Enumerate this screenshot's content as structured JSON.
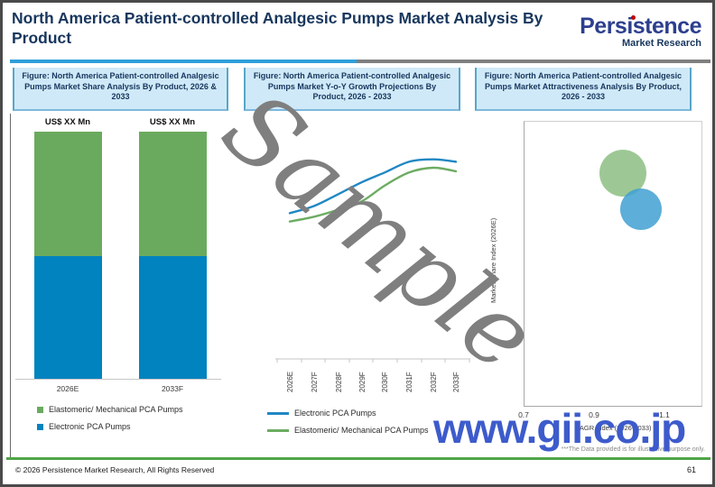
{
  "header": {
    "title": "North America Patient-controlled Analgesic Pumps Market Analysis By Product",
    "logo": {
      "name": "Persistence",
      "tagline": "Market Research",
      "accent_color": "#c00000",
      "brand_color": "#2c3f8e"
    }
  },
  "figures": [
    {
      "title": "Figure: North America Patient-controlled Analgesic Pumps Market Share Analysis By Product, 2026 & 2033"
    },
    {
      "title": "Figure: North America Patient-controlled Analgesic Pumps Market Y-o-Y Growth Projections By Product, 2026 - 2033"
    },
    {
      "title": "Figure: North America Patient-controlled Analgesic Pumps Market Attractiveness Analysis By Product, 2026 - 2033"
    }
  ],
  "chart_data": [
    {
      "type": "bar",
      "subtype": "stacked",
      "title": "North America Patient-controlled Analgesic Pumps Market Share Analysis By Product, 2026 & 2033",
      "categories": [
        "2026E",
        "2033F"
      ],
      "bar_value_labels": [
        "US$ XX Mn",
        "US$ XX Mn"
      ],
      "series": [
        {
          "name": "Electronic PCA Pumps",
          "color": "#0083bf",
          "values": [
            "XX",
            "XX"
          ],
          "heights_pct": [
            49.6,
            49.6
          ]
        },
        {
          "name": "Elastomeric/ Mechanical PCA Pumps",
          "color": "#6aaa5e",
          "values": [
            "XX",
            "XX"
          ],
          "heights_pct": [
            50.4,
            50.4
          ]
        }
      ],
      "note": "values masked as US$ XX Mn in sample; both stacks appear ~50/50"
    },
    {
      "type": "line",
      "title": "North America Patient-controlled Analgesic Pumps Market Y-o-Y Growth Projections By Product, 2026 - 2033",
      "x": [
        "2026E",
        "2027F",
        "2028F",
        "2029F",
        "2030F",
        "2031F",
        "2032F",
        "2033F"
      ],
      "series": [
        {
          "name": "Electronic PCA Pumps",
          "color": "#2187c3",
          "values_relative": [
            61,
            64,
            69,
            74,
            78,
            82.5,
            83.5,
            82.5
          ]
        },
        {
          "name": "Elastomeric/ Mechanical PCA Pumps",
          "color": "#6cac62",
          "values_relative": [
            57.5,
            59.5,
            62.5,
            66,
            72.5,
            78,
            80,
            78.5
          ]
        }
      ],
      "yaxis_visible": false,
      "note": "y-axis unlabeled; values are relative growth index 0-100 estimated from pixels"
    },
    {
      "type": "scatter",
      "subtype": "bubble",
      "title": "North America Patient-controlled Analgesic Pumps Market Attractiveness Analysis By Product, 2026 - 2033",
      "xlabel": "CAGR Index (2026-2033)",
      "ylabel": "Market Share Index (2026E)",
      "x_ticks": [
        "0.7",
        "0.9",
        "1.1"
      ],
      "xlim": [
        0.7,
        1.2
      ],
      "points": [
        {
          "name": "Elastomeric/ Mechanical PCA Pumps",
          "x": 0.98,
          "y_pct": 82,
          "radius_px": 26,
          "color": "#8cbe82"
        },
        {
          "name": "Electronic PCA Pumps",
          "x": 1.03,
          "y_pct": 69.5,
          "radius_px": 23,
          "color": "#41a0d2"
        }
      ],
      "note": "y-axis tick labels not visible; y_pct estimated from plot height"
    }
  ],
  "legends": {
    "bar": [
      {
        "label": "Elastomeric/ Mechanical PCA Pumps",
        "color": "#6aaa5e"
      },
      {
        "label": "Electronic PCA Pumps",
        "color": "#0083bf"
      }
    ],
    "line": [
      {
        "label": "Electronic PCA Pumps",
        "color": "#2187c3"
      },
      {
        "label": "Elastomeric/ Mechanical PCA Pumps",
        "color": "#6cac62"
      }
    ]
  },
  "watermarks": {
    "sample": "Sample",
    "site": "www.gii.co.jp"
  },
  "footer": {
    "disclaimer": "***The Data provided is for illustrative purpose only.",
    "copyright": "© 2026 Persistence Market Research, All Rights Reserved",
    "page": "61"
  },
  "colors": {
    "title_navy": "#17365d",
    "figure_box_bg": "#cfe9f8",
    "figure_box_border": "#58a6c8",
    "rule_blue": "#2f9fd9",
    "rule_gray": "#7f7f7f",
    "footer_green": "#4fa547",
    "watermark_gray": "#7f7f7f",
    "watermark_blue": "#3d5bcb"
  }
}
